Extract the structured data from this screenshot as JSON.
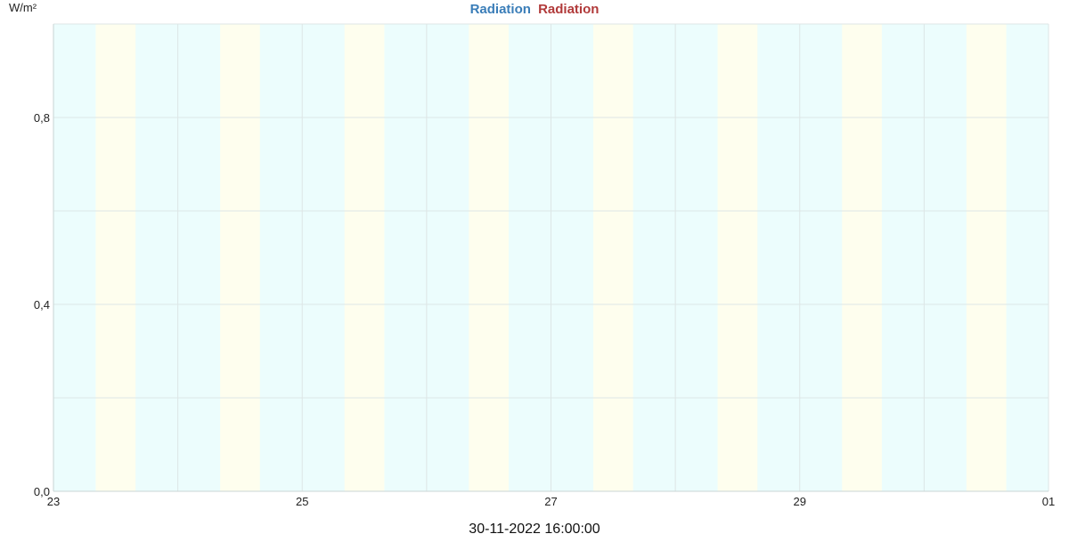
{
  "chart_data": {
    "type": "line",
    "title_parts": [
      {
        "text": "Radiation",
        "color": "#3a7db8"
      },
      {
        "text": "Radiation",
        "color": "#b13a3a"
      }
    ],
    "ylabel": "W/m²",
    "yticks": [
      {
        "value": 0.0,
        "label": "0,0"
      },
      {
        "value": 0.4,
        "label": "0,4"
      },
      {
        "value": 0.8,
        "label": "0,8"
      }
    ],
    "ylim": [
      0,
      1.0
    ],
    "y_minor_gridlines": [
      0.2,
      0.6
    ],
    "xlim_days": [
      0,
      8
    ],
    "xticks": [
      {
        "day": 0,
        "label": "23"
      },
      {
        "day": 2,
        "label": "25"
      },
      {
        "day": 4,
        "label": "27"
      },
      {
        "day": 6,
        "label": "29"
      },
      {
        "day": 8,
        "label": "01"
      }
    ],
    "x_gridline_days": [
      1,
      3,
      5,
      7
    ],
    "day_bands": [
      {
        "start": 0.34,
        "end": 0.66
      },
      {
        "start": 1.34,
        "end": 1.66
      },
      {
        "start": 2.34,
        "end": 2.66
      },
      {
        "start": 3.34,
        "end": 3.66
      },
      {
        "start": 4.34,
        "end": 4.66
      },
      {
        "start": 5.34,
        "end": 5.66
      },
      {
        "start": 6.34,
        "end": 6.66
      },
      {
        "start": 7.34,
        "end": 7.66
      }
    ],
    "series": [],
    "grid": true,
    "colors": {
      "night_band": "#ecfdfd",
      "day_band": "#fefeee",
      "grid": "#dde6e6",
      "axis": "#c9d4d4"
    },
    "footer": "30-11-2022 16:00:00"
  }
}
